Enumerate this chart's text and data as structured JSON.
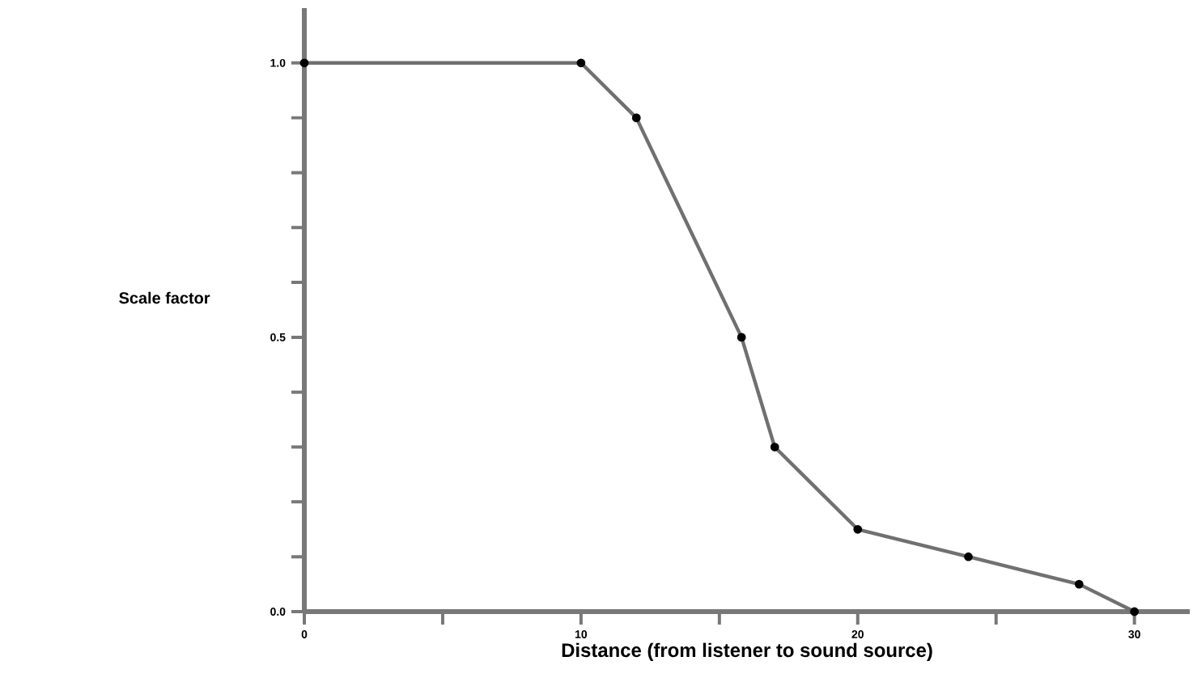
{
  "chart_data": {
    "type": "line",
    "xlabel": "Distance (from listener to sound source)",
    "ylabel": "Scale factor",
    "x": [
      0,
      10,
      12,
      15.8,
      17,
      20,
      24,
      28,
      30
    ],
    "series": [
      {
        "color": "#707070",
        "values": [
          1.0,
          1.0,
          0.9,
          0.5,
          0.3,
          0.15,
          0.1,
          0.05,
          0.0
        ]
      }
    ],
    "xlim": [
      0,
      32
    ],
    "ylim": [
      0,
      1.1
    ],
    "xticks": [
      0,
      {
        "value": 5,
        "label": null
      },
      10,
      {
        "value": 15,
        "label": null
      },
      20,
      {
        "value": 25,
        "label": null
      },
      30
    ],
    "yticks": [
      {
        "value": 0,
        "label": "0.0"
      },
      {
        "value": 0.1,
        "label": null
      },
      {
        "value": 0.2,
        "label": null
      },
      {
        "value": 0.3,
        "label": null
      },
      {
        "value": 0.4,
        "label": null
      },
      {
        "value": 0.5,
        "label": "0.5"
      },
      {
        "value": 0.6,
        "label": null
      },
      {
        "value": 0.7,
        "label": null
      },
      {
        "value": 0.8,
        "label": null
      },
      {
        "value": 0.9,
        "label": null
      },
      {
        "value": 1.0,
        "label": "1.0"
      }
    ],
    "grid": false,
    "marker": "circle",
    "line_style": "solid"
  }
}
